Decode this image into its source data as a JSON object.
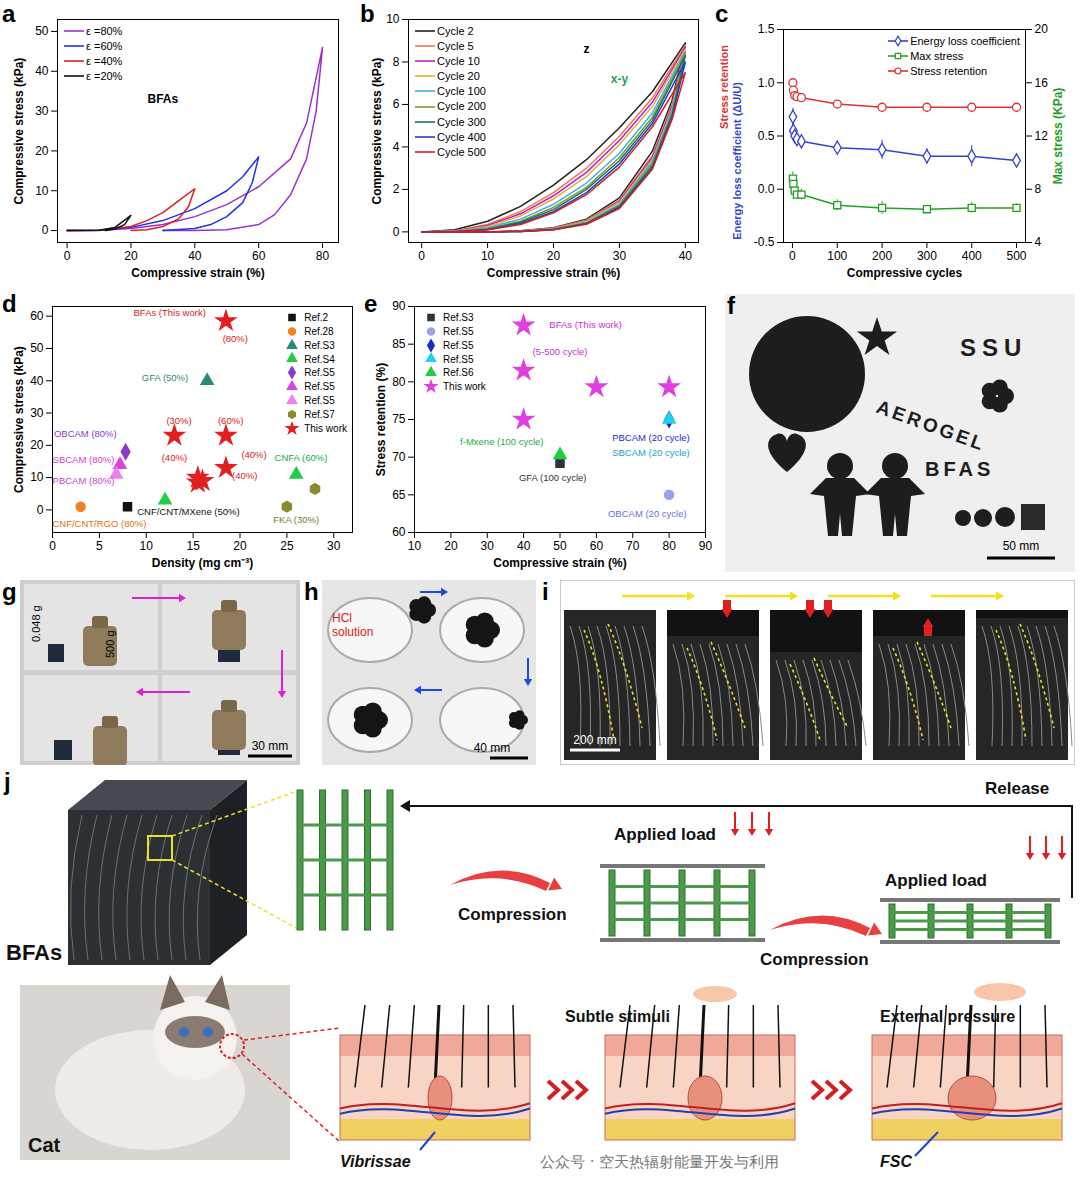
{
  "chart_data": [
    {
      "panel_label": "a",
      "type": "line",
      "xlabel": "Compressive strain (%)",
      "ylabel": "Compressive stress (kPa)",
      "xlim": [
        -3,
        85
      ],
      "xticks": [
        0,
        20,
        40,
        60,
        80
      ],
      "ylim": [
        -3,
        53
      ],
      "yticks": [
        0,
        10,
        20,
        30,
        40,
        50
      ],
      "legend": "top-left",
      "annotations": [
        {
          "text": "BFAs",
          "x": 30,
          "y": 33,
          "color": "#000000"
        }
      ],
      "series": [
        {
          "name": "ε =80%",
          "color": "#9b30d0",
          "x": [
            0,
            10,
            20,
            30,
            40,
            50,
            60,
            70,
            75,
            80,
            78,
            75,
            70,
            65,
            60,
            50,
            40,
            30
          ],
          "values": [
            0,
            0.1,
            0.5,
            1.5,
            3.5,
            6.5,
            11,
            18,
            27,
            46,
            30,
            18,
            9,
            4,
            1.5,
            0.2,
            0,
            0
          ]
        },
        {
          "name": "ε =60%",
          "color": "#2233dd",
          "x": [
            0,
            10,
            20,
            30,
            40,
            50,
            55,
            60,
            58,
            55,
            50,
            45,
            40,
            30
          ],
          "values": [
            0,
            0,
            0.8,
            2.5,
            5.5,
            10,
            13.5,
            18.5,
            12,
            7,
            3.5,
            1.5,
            0.5,
            0
          ]
        },
        {
          "name": "ε =40%",
          "color": "#e02020",
          "x": [
            0,
            10,
            20,
            25,
            30,
            35,
            40,
            38,
            35,
            30,
            25,
            20
          ],
          "values": [
            0,
            0.1,
            1,
            2.5,
            4.5,
            7.5,
            10.5,
            6,
            3,
            1,
            0.2,
            0
          ]
        },
        {
          "name": "ε =20%",
          "color": "#111111",
          "x": [
            0,
            10,
            15,
            20,
            18,
            15,
            12
          ],
          "values": [
            0,
            0.1,
            0.8,
            3.8,
            1.5,
            0.4,
            0
          ]
        }
      ]
    },
    {
      "panel_label": "b",
      "type": "line",
      "xlabel": "Compressive strain (%)",
      "ylabel": "Compressive stress (kPa)",
      "xlim": [
        -2,
        42
      ],
      "xticks": [
        0,
        10,
        20,
        30,
        40
      ],
      "ylim": [
        -0.5,
        10
      ],
      "yticks": [
        0,
        2,
        4,
        6,
        8,
        10
      ],
      "legend": "top-left",
      "annotations": [
        {
          "text": "z",
          "x": 25,
          "y": 8.6,
          "color": "#000000"
        },
        {
          "text": "x-y",
          "x": 30,
          "y": 7.2,
          "color": "#20a060"
        }
      ],
      "x": [
        0,
        5,
        10,
        15,
        20,
        25,
        30,
        35,
        40,
        38,
        35,
        30,
        25,
        20,
        15,
        10,
        5,
        0
      ],
      "series": [
        {
          "name": "Cycle 2",
          "color": "#222222",
          "values": [
            0,
            0.1,
            0.5,
            1.2,
            2.2,
            3.4,
            4.9,
            6.6,
            8.9,
            6.2,
            3.8,
            1.6,
            0.6,
            0.2,
            0.05,
            0,
            0,
            0
          ]
        },
        {
          "name": "Cycle 5",
          "color": "#f07850",
          "values": [
            0,
            0.05,
            0.35,
            0.95,
            1.85,
            3.0,
            4.5,
            6.3,
            8.8,
            6.0,
            3.6,
            1.5,
            0.55,
            0.18,
            0.04,
            0,
            0,
            0
          ]
        },
        {
          "name": "Cycle 10",
          "color": "#c020c0",
          "values": [
            0,
            0.04,
            0.3,
            0.85,
            1.7,
            2.8,
            4.3,
            6.1,
            8.7,
            5.9,
            3.5,
            1.45,
            0.5,
            0.16,
            0.04,
            0,
            0,
            0
          ]
        },
        {
          "name": "Cycle 20",
          "color": "#e0b040",
          "values": [
            0,
            0.03,
            0.25,
            0.75,
            1.55,
            2.6,
            4.1,
            5.9,
            8.6,
            5.8,
            3.4,
            1.4,
            0.5,
            0.15,
            0.03,
            0,
            0,
            0
          ]
        },
        {
          "name": "Cycle 100",
          "color": "#40b0e0",
          "values": [
            0,
            0.02,
            0.2,
            0.6,
            1.3,
            2.3,
            3.7,
            5.6,
            8.5,
            5.7,
            3.3,
            1.3,
            0.45,
            0.13,
            0.03,
            0,
            0,
            0
          ]
        },
        {
          "name": "Cycle 200",
          "color": "#7a9a30",
          "values": [
            0,
            0.02,
            0.15,
            0.5,
            1.15,
            2.1,
            3.5,
            5.4,
            8.4,
            5.6,
            3.2,
            1.25,
            0.42,
            0.12,
            0.02,
            0,
            0,
            0
          ]
        },
        {
          "name": "Cycle 300",
          "color": "#207060",
          "values": [
            0,
            0.01,
            0.12,
            0.45,
            1.05,
            2.0,
            3.35,
            5.25,
            8.3,
            5.5,
            3.1,
            1.2,
            0.4,
            0.11,
            0.02,
            0,
            0,
            0
          ]
        },
        {
          "name": "Cycle 400",
          "color": "#2040c0",
          "values": [
            0,
            0.01,
            0.1,
            0.4,
            0.95,
            1.85,
            3.2,
            5.1,
            8.0,
            5.4,
            3.0,
            1.15,
            0.38,
            0.1,
            0.02,
            0,
            0,
            0
          ]
        },
        {
          "name": "Cycle 500",
          "color": "#d02020",
          "values": [
            0,
            0.01,
            0.1,
            0.35,
            0.9,
            1.75,
            3.05,
            4.95,
            7.5,
            5.3,
            2.95,
            1.1,
            0.36,
            0.1,
            0.02,
            0,
            0,
            0
          ]
        }
      ]
    },
    {
      "panel_label": "c",
      "type": "line",
      "xlabel": "Compressive cycles",
      "ylabel": [
        {
          "text": "Energy loss coefficient (ΔU/U)",
          "color": "#3344cc"
        },
        {
          "text": "Stress retention",
          "color": "#e03030"
        }
      ],
      "y2label": {
        "text": "Max stress (KPa)",
        "color": "#22a022"
      },
      "xlim": [
        -20,
        520
      ],
      "xticks": [
        0,
        100,
        200,
        300,
        400,
        500
      ],
      "ylim": [
        -0.5,
        1.5
      ],
      "yticks": [
        -0.5,
        {
          "value": 0,
          "label": "0.0"
        },
        0.5,
        {
          "value": 1,
          "label": "1.0"
        },
        1.5
      ],
      "y2lim": [
        4,
        20
      ],
      "y2ticks": [
        4,
        8,
        12,
        16,
        20
      ],
      "legend": "top-right",
      "x": [
        1,
        2,
        5,
        10,
        20,
        100,
        200,
        300,
        400,
        500
      ],
      "series": [
        {
          "name": "Energy loss coefficient",
          "color": "#3344cc",
          "marker": "diamond",
          "values": [
            0.68,
            0.55,
            0.5,
            0.47,
            0.45,
            0.39,
            0.37,
            0.31,
            0.31,
            0.27
          ],
          "errors": [
            0.08,
            0.05,
            0.06,
            0.05,
            0.04,
            0.03,
            0.09,
            0.07,
            0.1,
            0.03
          ]
        },
        {
          "name": "Max stress",
          "color": "#22a022",
          "marker": "square",
          "axis": "y2",
          "values": [
            8.8,
            8.4,
            7.9,
            7.6,
            7.6,
            6.8,
            6.6,
            6.5,
            6.6,
            6.6
          ],
          "errors": [
            0.5,
            0.4,
            0.4,
            0.3,
            0.4,
            0.4,
            0.5,
            0.3,
            0.4,
            0.3
          ]
        },
        {
          "name": "Stress retention",
          "color": "#e03030",
          "marker": "circle",
          "values": [
            1.0,
            0.93,
            0.88,
            0.87,
            0.86,
            0.8,
            0.77,
            0.77,
            0.77,
            0.77
          ],
          "errors": [
            0.03,
            0.02,
            0.03,
            0.02,
            0.02,
            0.02,
            0.02,
            0.02,
            0.02,
            0.02
          ]
        }
      ]
    },
    {
      "panel_label": "d",
      "type": "scatter",
      "xlabel": "Density (mg cm⁻³)",
      "ylabel": "Compressive stress (kPa)",
      "xlim": [
        0,
        32
      ],
      "xticks": [
        0,
        5,
        10,
        15,
        20,
        25,
        30
      ],
      "ylim": [
        -7,
        63
      ],
      "yticks": [
        0,
        10,
        20,
        30,
        40,
        50,
        60
      ],
      "legend": "top-right",
      "series": [
        {
          "name": "Ref.2",
          "color": "#111111",
          "marker": "square",
          "x": [
            8
          ],
          "values": [
            1
          ]
        },
        {
          "name": "Ref.28",
          "color": "#f08020",
          "marker": "circle",
          "x": [
            3
          ],
          "values": [
            1
          ]
        },
        {
          "name": "Ref.S3",
          "color": "#2a8a7a",
          "marker": "triangle",
          "x": [
            16.5
          ],
          "values": [
            40
          ]
        },
        {
          "name": "Ref.S4",
          "color": "#22cc44",
          "marker": "triangle",
          "x": [
            12,
            26
          ],
          "values": [
            3,
            11
          ]
        },
        {
          "name": "Ref.S5",
          "color": "#8a3ac8",
          "marker": "diamond",
          "x": [
            7.8
          ],
          "values": [
            18
          ]
        },
        {
          "name": "Ref.S5",
          "color": "#e040e0",
          "marker": "triangle",
          "x": [
            7.2
          ],
          "values": [
            14
          ]
        },
        {
          "name": "Ref.S5",
          "color": "#f080f0",
          "marker": "triangle",
          "x": [
            6.8
          ],
          "values": [
            11
          ]
        },
        {
          "name": "Ref.S7",
          "color": "#8a8a30",
          "marker": "hexagon",
          "x": [
            25,
            28
          ],
          "values": [
            1,
            6.5
          ]
        },
        {
          "name": "This work",
          "color": "#e02020",
          "marker": "star",
          "x": [
            18.5,
            13,
            18.5,
            18.5,
            15.5,
            15.5,
            16
          ],
          "values": [
            58.5,
            23,
            23,
            13,
            10,
            8.5,
            9
          ]
        }
      ],
      "annotations": [
        {
          "text": "BFAs (This work)",
          "x": 12.5,
          "y": 61,
          "color": "#e02020"
        },
        {
          "text": "(80%)",
          "x": 19.5,
          "y": 53,
          "color": "#e02020"
        },
        {
          "text": "GFA (50%)",
          "x": 12,
          "y": 41,
          "color": "#2a8a7a"
        },
        {
          "text": "(30%)",
          "x": 13.5,
          "y": 27.5,
          "color": "#e02020"
        },
        {
          "text": "(60%)",
          "x": 19,
          "y": 27.5,
          "color": "#e02020"
        },
        {
          "text": "(40%)",
          "x": 21.5,
          "y": 17,
          "color": "#e02020"
        },
        {
          "text": "(40%)",
          "x": 13,
          "y": 16,
          "color": "#e02020"
        },
        {
          "text": "(40%)",
          "x": 20.5,
          "y": 10.5,
          "color": "#e02020"
        },
        {
          "text": "OBCAM (80%)",
          "x": 3.5,
          "y": 23.5,
          "color": "#8a3ac8"
        },
        {
          "text": "SBCAM (80%)",
          "x": 3.3,
          "y": 15.5,
          "color": "#d040d0"
        },
        {
          "text": "PBCAM (80%)",
          "x": 3.3,
          "y": 9,
          "color": "#d040d0"
        },
        {
          "text": "CNF/CNT/MXene (50%)",
          "x": 14.5,
          "y": -0.5,
          "color": "#111111"
        },
        {
          "text": "CNF/CNT/RGO (80%)",
          "x": 5,
          "y": -4.5,
          "color": "#e07010"
        },
        {
          "text": "CNFA (60%)",
          "x": 26.5,
          "y": 16,
          "color": "#22aa44"
        },
        {
          "text": "FKA (30%)",
          "x": 26,
          "y": -3,
          "color": "#7a7a20"
        }
      ]
    },
    {
      "panel_label": "e",
      "type": "scatter",
      "xlabel": "Compressive strain (%)",
      "ylabel": "Stress retention (%)",
      "xlim": [
        10,
        90
      ],
      "xticks": [
        10,
        20,
        30,
        40,
        50,
        60,
        70,
        80,
        90
      ],
      "ylim": [
        60,
        90
      ],
      "yticks": [
        60,
        65,
        70,
        75,
        80,
        85,
        90
      ],
      "legend": "top-left",
      "series": [
        {
          "name": "Ref.S3",
          "color": "#333333",
          "marker": "square",
          "x": [
            50
          ],
          "values": [
            69.2
          ]
        },
        {
          "name": "Ref.S5",
          "color": "#9aa0f0",
          "marker": "circle",
          "x": [
            80
          ],
          "values": [
            65
          ]
        },
        {
          "name": "Ref.S5",
          "color": "#1a2ad0",
          "marker": "diamond",
          "x": [
            80
          ],
          "values": [
            75
          ]
        },
        {
          "name": "Ref.S5",
          "color": "#20d0f0",
          "marker": "triangle",
          "x": [
            80
          ],
          "values": [
            75
          ]
        },
        {
          "name": "Ref.S6",
          "color": "#22cc44",
          "marker": "triangle",
          "x": [
            50
          ],
          "values": [
            70.3
          ]
        },
        {
          "name": "This work",
          "color": "#e040e0",
          "marker": "star",
          "x": [
            40,
            40,
            40,
            60,
            80
          ],
          "values": [
            87.5,
            81.5,
            75,
            79.3,
            79.3
          ]
        }
      ],
      "annotations": [
        {
          "text": "BFAs (This work)",
          "x": 57,
          "y": 87.5,
          "color": "#d030d0"
        },
        {
          "text": "(5-500 cycle)",
          "x": 50,
          "y": 84,
          "color": "#d030d0"
        },
        {
          "text": "f-Mxene (100 cycle)",
          "x": 34,
          "y": 72,
          "color": "#22aa44"
        },
        {
          "text": "GFA (100 cycle)",
          "x": 48,
          "y": 67.3,
          "color": "#333333"
        },
        {
          "text": "PBCAM (20 cycle)",
          "x": 75,
          "y": 72.5,
          "color": "#1a2ad0"
        },
        {
          "text": "SBCAM (20 cycle)",
          "x": 75,
          "y": 70.5,
          "color": "#10a8c8"
        },
        {
          "text": "OBCAM (20 cycle)",
          "x": 74,
          "y": 62.5,
          "color": "#6a70d8"
        }
      ]
    }
  ],
  "photos": {
    "f": {
      "panel_label": "f",
      "texts": [
        "SSU",
        "AEROGEL",
        "BFAS"
      ],
      "scale_bar": "50 mm"
    },
    "g": {
      "panel_label": "g",
      "texts": [
        "0.048 g",
        "500 g"
      ],
      "scale_bar": "30 mm"
    },
    "h": {
      "panel_label": "h",
      "texts": [
        "HCl solution"
      ],
      "scale_bar": "40 mm"
    },
    "i": {
      "panel_label": "i",
      "scale_bar": "200 mm"
    },
    "j": {
      "panel_label": "j",
      "labels": {
        "material": "BFAs",
        "load_1": "Applied load",
        "load_2": "Applied load",
        "compression_1": "Compression",
        "compression_2": "Compression",
        "release": "Release",
        "animal": "Cat",
        "stimuli": "Subtle stimuli",
        "pressure": "External pressure",
        "vibrissae": "Vibrissae",
        "fsc": "FSC"
      }
    }
  },
  "watermark": "公众号 · 空天热辐射能量开发与利用"
}
